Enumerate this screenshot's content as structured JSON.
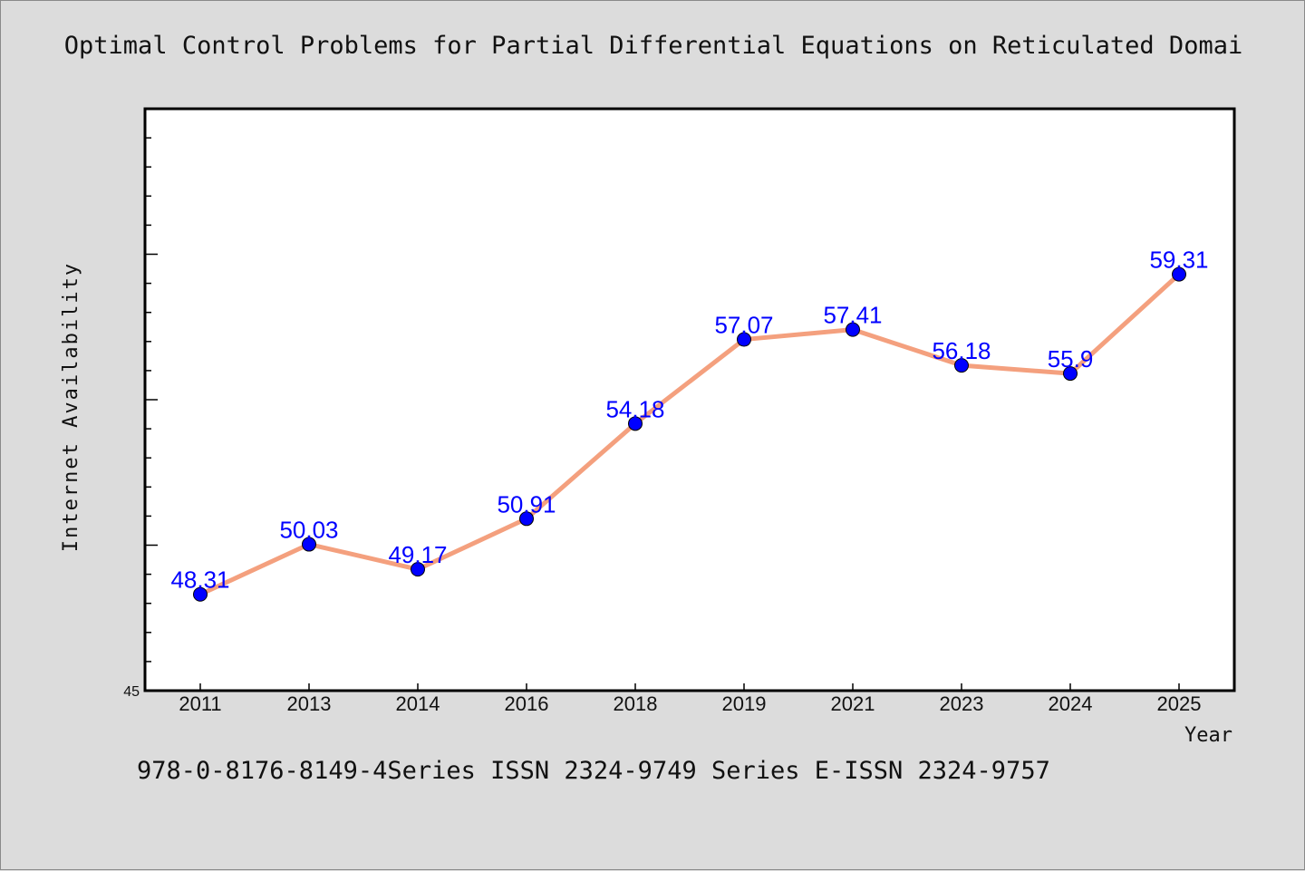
{
  "chart_data": {
    "type": "line",
    "title": "Optimal Control Problems for Partial Differential Equations on Reticulated Domai",
    "xlabel": "Year",
    "ylabel": "Internet Availability",
    "categories": [
      "2011",
      "2013",
      "2014",
      "2016",
      "2018",
      "2019",
      "2021",
      "2023",
      "2024",
      "2025"
    ],
    "series": [
      {
        "values": [
          48.31,
          50.03,
          49.17,
          50.91,
          54.18,
          57.07,
          57.41,
          56.18,
          55.9,
          59.31
        ],
        "data_labels": [
          "48.31",
          "50.03",
          "49.17",
          "50.91",
          "54.18",
          "57.07",
          "57.41",
          "56.18",
          "55.9",
          "59.31"
        ]
      }
    ],
    "ylim": [
      45,
      65
    ],
    "y_tick_labels": [
      "45"
    ],
    "grid": false,
    "line_color": "#f4a07e",
    "marker_color": "#0000ff",
    "label_color": "#0000ff"
  },
  "footer": {
    "text": "978-0-8176-8149-4Series ISSN 2324-9749 Series E-ISSN 2324-9757"
  }
}
